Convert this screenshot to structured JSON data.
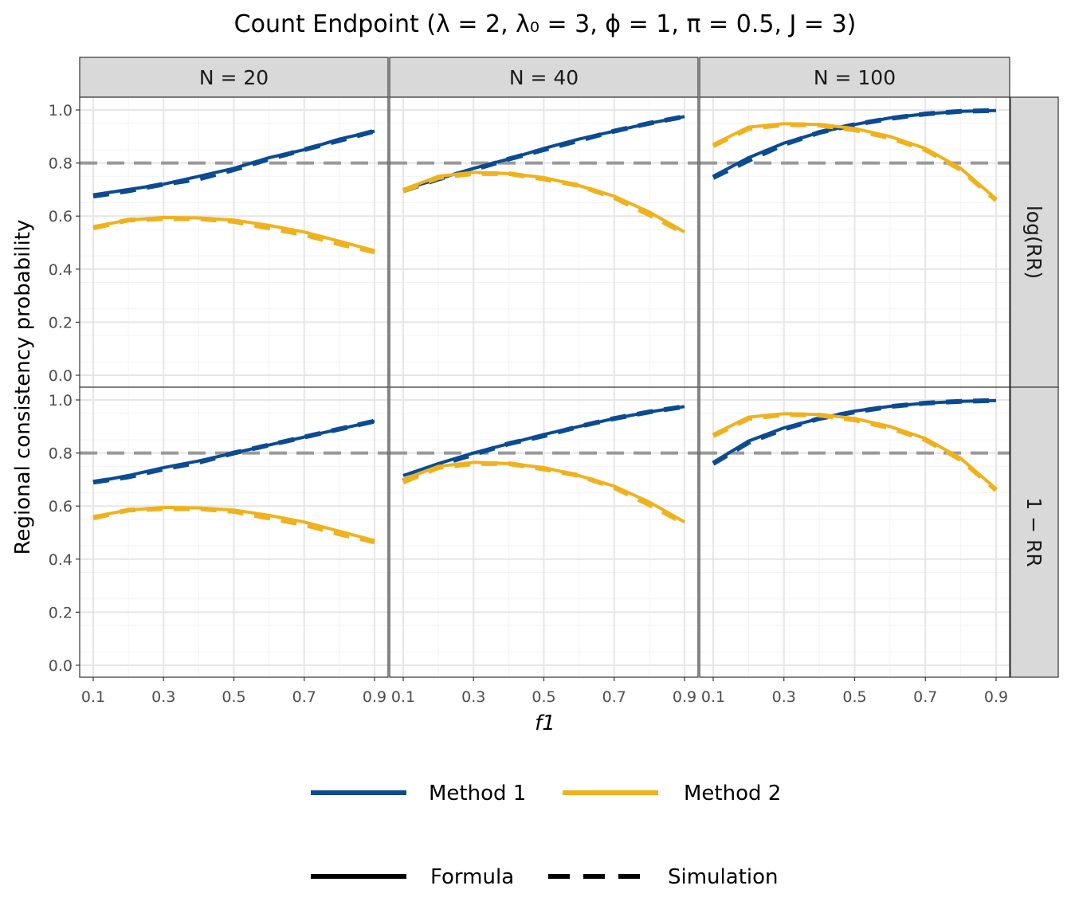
{
  "chart_data": {
    "type": "line",
    "title": "Count Endpoint  (λ = 2, λ₀ = 3, ϕ = 1, π = 0.5, J = 3)",
    "xlabel": "f1",
    "ylabel": "Regional consistency probability",
    "xlim": [
      0.1,
      0.9
    ],
    "ylim": [
      0,
      1
    ],
    "x_ticks": [
      "0.1",
      "0.3",
      "0.5",
      "0.7",
      "0.9"
    ],
    "y_ticks": [
      "0.0",
      "0.2",
      "0.4",
      "0.6",
      "0.8",
      "1.0"
    ],
    "grid": true,
    "reference_line": {
      "y": 0.8,
      "style": "dashed",
      "color": "#999999"
    },
    "facet_columns": [
      "N = 20",
      "N = 40",
      "N = 100"
    ],
    "facet_rows": [
      "log(RR)",
      "1 − RR"
    ],
    "x": [
      0.1,
      0.2,
      0.3,
      0.4,
      0.5,
      0.6,
      0.7,
      0.8,
      0.9
    ],
    "colors": {
      "Method 1": "#0B4B93",
      "Method 2": "#EFB21E"
    },
    "panels": [
      {
        "row": "log(RR)",
        "col": "N = 20",
        "series": [
          {
            "method": "Method 1",
            "type": "Formula",
            "values": [
              0.68,
              0.7,
              0.72,
              0.75,
              0.78,
              0.82,
              0.85,
              0.89,
              0.92
            ]
          },
          {
            "method": "Method 1",
            "type": "Simulation",
            "values": [
              0.675,
              0.695,
              0.72,
              0.74,
              0.775,
              0.815,
              0.85,
              0.885,
              0.92
            ]
          },
          {
            "method": "Method 2",
            "type": "Formula",
            "values": [
              0.56,
              0.585,
              0.595,
              0.593,
              0.585,
              0.565,
              0.54,
              0.505,
              0.47
            ]
          },
          {
            "method": "Method 2",
            "type": "Simulation",
            "values": [
              0.555,
              0.585,
              0.59,
              0.59,
              0.58,
              0.555,
              0.53,
              0.495,
              0.465
            ]
          }
        ]
      },
      {
        "row": "log(RR)",
        "col": "N = 40",
        "series": [
          {
            "method": "Method 1",
            "type": "Formula",
            "values": [
              0.7,
              0.74,
              0.78,
              0.815,
              0.855,
              0.89,
              0.92,
              0.95,
              0.975
            ]
          },
          {
            "method": "Method 1",
            "type": "Simulation",
            "values": [
              0.695,
              0.74,
              0.775,
              0.815,
              0.85,
              0.885,
              0.92,
              0.95,
              0.975
            ]
          },
          {
            "method": "Method 2",
            "type": "Formula",
            "values": [
              0.7,
              0.75,
              0.765,
              0.76,
              0.745,
              0.715,
              0.675,
              0.615,
              0.54
            ]
          },
          {
            "method": "Method 2",
            "type": "Simulation",
            "values": [
              0.695,
              0.745,
              0.76,
              0.76,
              0.74,
              0.715,
              0.67,
              0.605,
              0.535
            ]
          }
        ]
      },
      {
        "row": "log(RR)",
        "col": "N = 100",
        "series": [
          {
            "method": "Method 1",
            "type": "Formula",
            "values": [
              0.75,
              0.82,
              0.875,
              0.915,
              0.945,
              0.97,
              0.985,
              0.995,
              0.998
            ]
          },
          {
            "method": "Method 1",
            "type": "Simulation",
            "values": [
              0.745,
              0.81,
              0.87,
              0.915,
              0.945,
              0.968,
              0.985,
              0.995,
              0.998
            ]
          },
          {
            "method": "Method 2",
            "type": "Formula",
            "values": [
              0.87,
              0.935,
              0.948,
              0.945,
              0.93,
              0.9,
              0.855,
              0.78,
              0.665
            ]
          },
          {
            "method": "Method 2",
            "type": "Simulation",
            "values": [
              0.865,
              0.93,
              0.945,
              0.943,
              0.925,
              0.895,
              0.85,
              0.775,
              0.66
            ]
          }
        ]
      },
      {
        "row": "1 − RR",
        "col": "N = 20",
        "series": [
          {
            "method": "Method 1",
            "type": "Formula",
            "values": [
              0.69,
              0.715,
              0.745,
              0.77,
              0.8,
              0.83,
              0.86,
              0.89,
              0.92
            ]
          },
          {
            "method": "Method 1",
            "type": "Simulation",
            "values": [
              0.69,
              0.71,
              0.74,
              0.765,
              0.8,
              0.83,
              0.86,
              0.89,
              0.92
            ]
          },
          {
            "method": "Method 2",
            "type": "Formula",
            "values": [
              0.56,
              0.585,
              0.595,
              0.593,
              0.585,
              0.565,
              0.54,
              0.505,
              0.47
            ]
          },
          {
            "method": "Method 2",
            "type": "Simulation",
            "values": [
              0.555,
              0.585,
              0.59,
              0.59,
              0.58,
              0.555,
              0.53,
              0.495,
              0.465
            ]
          }
        ]
      },
      {
        "row": "1 − RR",
        "col": "N = 40",
        "series": [
          {
            "method": "Method 1",
            "type": "Formula",
            "values": [
              0.715,
              0.76,
              0.8,
              0.835,
              0.87,
              0.9,
              0.93,
              0.955,
              0.975
            ]
          },
          {
            "method": "Method 1",
            "type": "Simulation",
            "values": [
              0.695,
              0.755,
              0.795,
              0.835,
              0.865,
              0.9,
              0.93,
              0.955,
              0.975
            ]
          },
          {
            "method": "Method 2",
            "type": "Formula",
            "values": [
              0.7,
              0.75,
              0.765,
              0.76,
              0.745,
              0.715,
              0.675,
              0.615,
              0.54
            ]
          },
          {
            "method": "Method 2",
            "type": "Simulation",
            "values": [
              0.69,
              0.745,
              0.76,
              0.76,
              0.74,
              0.715,
              0.67,
              0.605,
              0.535
            ]
          }
        ]
      },
      {
        "row": "1 − RR",
        "col": "N = 100",
        "series": [
          {
            "method": "Method 1",
            "type": "Formula",
            "values": [
              0.765,
              0.845,
              0.895,
              0.93,
              0.958,
              0.976,
              0.988,
              0.995,
              0.998
            ]
          },
          {
            "method": "Method 1",
            "type": "Simulation",
            "values": [
              0.76,
              0.84,
              0.89,
              0.93,
              0.955,
              0.975,
              0.988,
              0.995,
              0.998
            ]
          },
          {
            "method": "Method 2",
            "type": "Formula",
            "values": [
              0.87,
              0.935,
              0.948,
              0.945,
              0.93,
              0.9,
              0.855,
              0.78,
              0.665
            ]
          },
          {
            "method": "Method 2",
            "type": "Simulation",
            "values": [
              0.865,
              0.93,
              0.945,
              0.943,
              0.925,
              0.895,
              0.85,
              0.775,
              0.66
            ]
          }
        ]
      }
    ],
    "legend": {
      "placement": "bottom",
      "color_entries": [
        "Method 1",
        "Method 2"
      ],
      "linetype_entries": [
        "Formula",
        "Simulation"
      ]
    }
  }
}
